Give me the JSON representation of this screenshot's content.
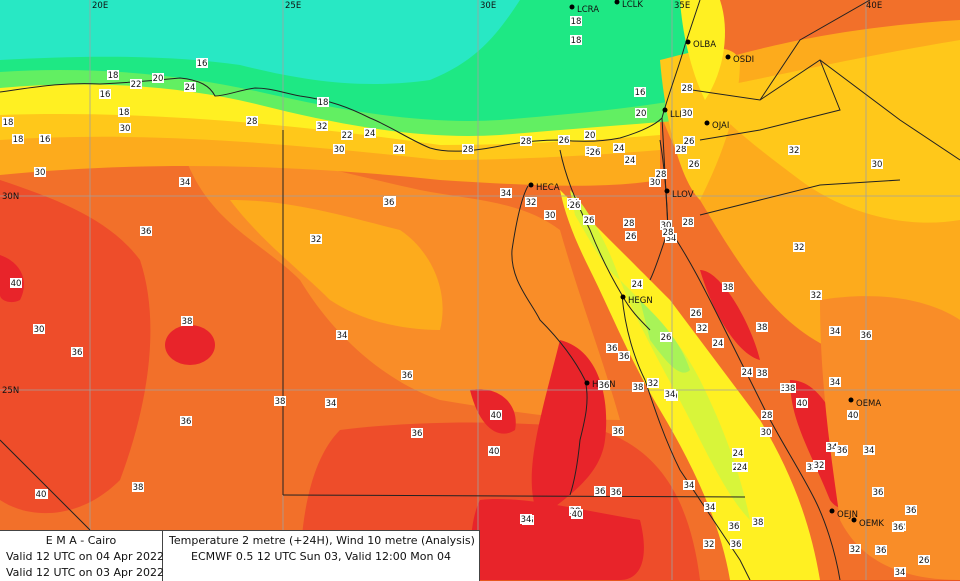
{
  "map": {
    "colors": {
      "hot40": "#e8242a",
      "hot38": "#ee4d2a",
      "warm36": "#f2702a",
      "warm34": "#f98d28",
      "mild32": "#fdab1c",
      "mild30": "#ffc81a",
      "cool28": "#fff022",
      "cool26": "#d8f53a",
      "cool24": "#a8f358",
      "cold22": "#62ef62",
      "cold20": "#1ee884",
      "cold18": "#16e6a4",
      "cold16": "#28e8c4",
      "border": "#222222",
      "grid": "#a0a0a0"
    },
    "grid_labels": [
      "20E",
      "25E",
      "30E",
      "35E",
      "40E",
      "30N",
      "25N"
    ],
    "stations": [
      {
        "code": "LCRA",
        "label": "LCRA"
      },
      {
        "code": "LCLK",
        "label": "LCLK"
      },
      {
        "code": "OLBA",
        "label": "OLBA"
      },
      {
        "code": "OSDI",
        "label": "OSDI"
      },
      {
        "code": "LLBG",
        "label": "LLBG"
      },
      {
        "code": "OJAI",
        "label": "OJAI"
      },
      {
        "code": "HECA",
        "label": "HECA"
      },
      {
        "code": "LLOV",
        "label": "LLOV"
      },
      {
        "code": "HEGN",
        "label": "HEGN"
      },
      {
        "code": "HESN",
        "label": "HESN"
      },
      {
        "code": "OEMA",
        "label": "OEMA"
      },
      {
        "code": "OEJN",
        "label": "OEJN"
      },
      {
        "code": "OEMK",
        "label": "OEMK"
      }
    ],
    "values": [
      "18",
      "16",
      "18",
      "18",
      "20",
      "22",
      "16",
      "24",
      "28",
      "16",
      "18",
      "30",
      "32",
      "18",
      "30",
      "28",
      "18",
      "18",
      "16",
      "20",
      "28",
      "24",
      "22",
      "28",
      "24",
      "28",
      "30",
      "26",
      "20",
      "24",
      "30",
      "26",
      "26",
      "24",
      "30",
      "28",
      "34",
      "26",
      "32",
      "24",
      "30",
      "28",
      "34",
      "36",
      "32",
      "30",
      "26",
      "26",
      "30",
      "34",
      "28",
      "32",
      "26",
      "30",
      "30",
      "28",
      "34",
      "36",
      "36",
      "40",
      "32",
      "38",
      "34",
      "36",
      "24",
      "26",
      "38",
      "38",
      "36",
      "36",
      "32",
      "26",
      "34",
      "32",
      "40",
      "34",
      "24",
      "34",
      "36",
      "36",
      "38",
      "38",
      "36",
      "32",
      "24",
      "38",
      "34",
      "36",
      "38",
      "40",
      "30",
      "24",
      "28",
      "36",
      "36",
      "36",
      "34",
      "32",
      "34",
      "34",
      "28",
      "24",
      "36",
      "38",
      "36",
      "40",
      "40",
      "24",
      "36",
      "32",
      "38",
      "34",
      "36",
      "36",
      "32",
      "36",
      "40",
      "34",
      "38",
      "32",
      "34",
      "34",
      "38",
      "36",
      "40",
      "36",
      "26",
      "32",
      "34",
      "36",
      "30",
      "36",
      "38",
      "36"
    ]
  },
  "legend": {
    "org": "E M A  -  Cairo",
    "valid1": "Valid 12 UTC on 04 Apr 2022",
    "valid2": "Valid 12 UTC on 03 Apr 2022",
    "product": "Temperature  2 metre (+24H), Wind  10 metre (Analysis)",
    "model": "ECMWF 0.5 12 UTC Sun 03, Valid 12:00 Mon 04"
  }
}
